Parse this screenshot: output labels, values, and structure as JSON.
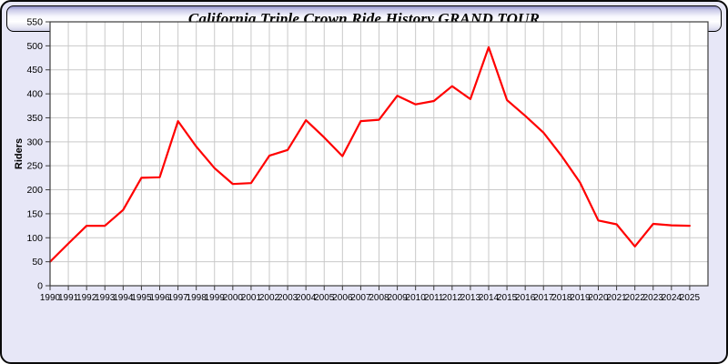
{
  "title": "California Triple Crown Ride History GRAND TOUR",
  "colors": {
    "page_background": "#e7e7f7",
    "page_border": "#0a0a0a",
    "titlebar_top": "#8f8fc7",
    "titlebar_middle": "#ffffff",
    "titlebar_bottom": "#cfcfe6",
    "plot_background": "#ffffff",
    "plot_frame": "#3c3c3c",
    "gridline": "#c9c9c9",
    "line": "#ff0000",
    "label_text": "#000000"
  },
  "chart_data": {
    "type": "line",
    "title": "California Triple Crown Ride History GRAND TOUR",
    "xlabel": "",
    "ylabel": "Riders",
    "grid": true,
    "legend_position": "none",
    "xlim": [
      1990,
      2026
    ],
    "ylim": [
      0,
      550
    ],
    "ytick_step": 50,
    "yticks": [
      0,
      50,
      100,
      150,
      200,
      250,
      300,
      350,
      400,
      450,
      500,
      550
    ],
    "x": [
      1990,
      1991,
      1992,
      1993,
      1994,
      1995,
      1996,
      1997,
      1998,
      1999,
      2000,
      2001,
      2002,
      2003,
      2004,
      2005,
      2006,
      2007,
      2008,
      2009,
      2010,
      2011,
      2012,
      2013,
      2014,
      2015,
      2016,
      2017,
      2018,
      2019,
      2020,
      2021,
      2022,
      2023,
      2024,
      2025
    ],
    "series": [
      {
        "name": "Riders",
        "color": "#ff0000",
        "values": [
          50,
          88,
          125,
          125,
          158,
          225,
          226,
          343,
          290,
          245,
          212,
          214,
          271,
          283,
          345,
          309,
          270,
          343,
          346,
          396,
          378,
          385,
          416,
          389,
          497,
          387,
          354,
          319,
          270,
          215,
          136,
          128,
          82,
          129,
          126,
          125
        ]
      }
    ]
  },
  "layout_note": "single red line, no markers, tick labels every year (overlapping)"
}
